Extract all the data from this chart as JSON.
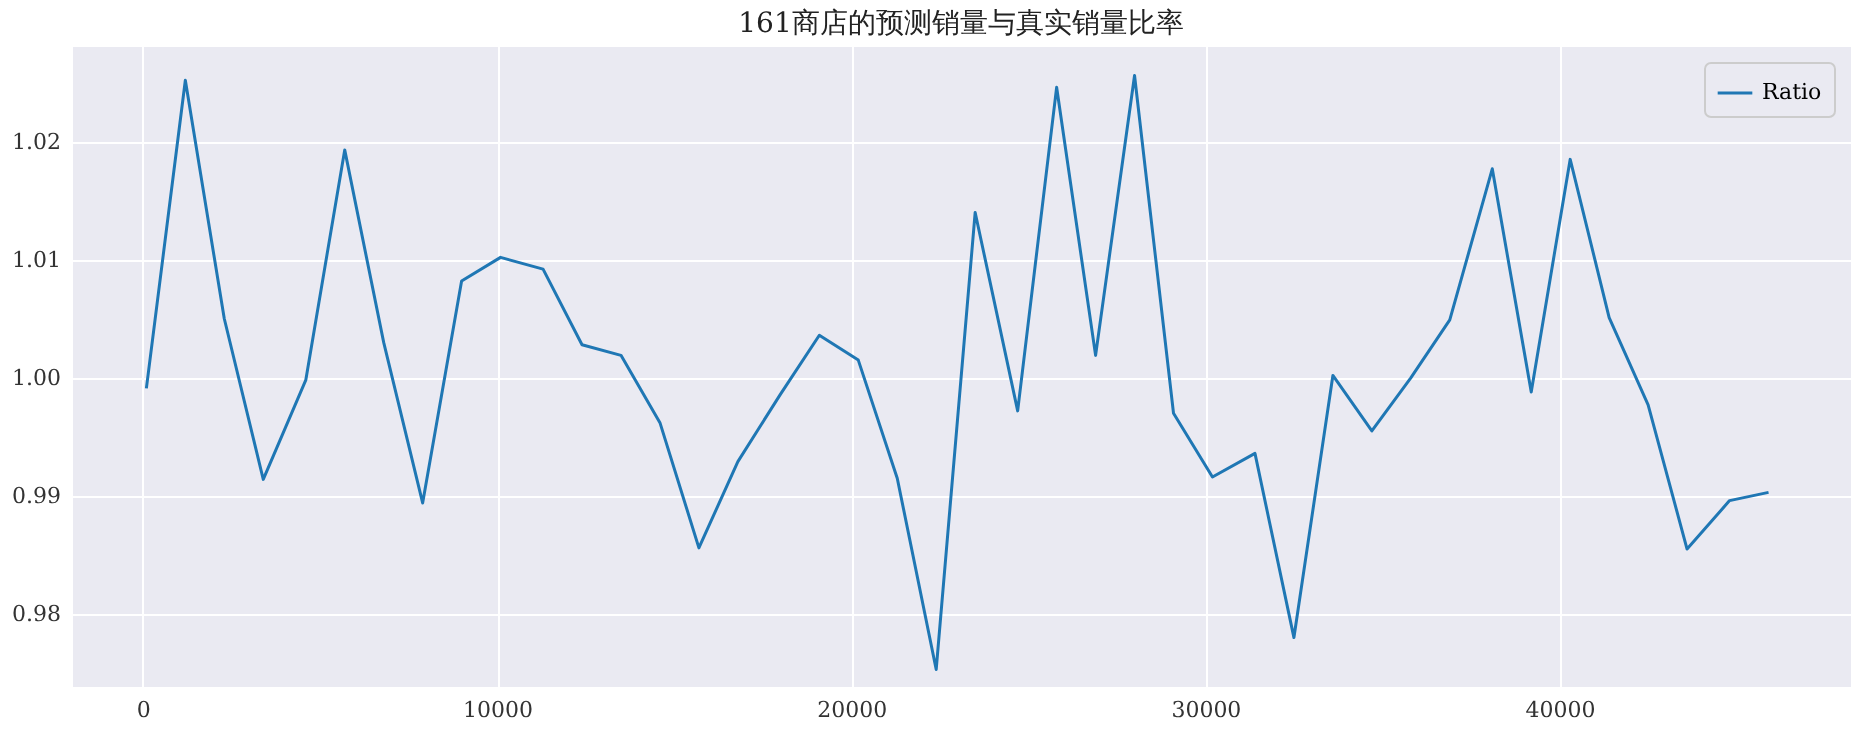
{
  "chart_data": {
    "type": "line",
    "title": "161商店的预测销量与真实销量比率",
    "x": [
      100,
      1200,
      2300,
      3400,
      4600,
      5700,
      6800,
      7900,
      9000,
      10100,
      11300,
      12400,
      13500,
      14600,
      15700,
      16800,
      18000,
      19100,
      20200,
      21300,
      22400,
      23500,
      24700,
      25800,
      26900,
      28000,
      29100,
      30200,
      31400,
      32500,
      33600,
      34700,
      35800,
      36900,
      38100,
      39200,
      40300,
      41400,
      42500,
      43600,
      44800,
      45900
    ],
    "series": [
      {
        "name": "Ratio",
        "color": "#1f77b4",
        "values": [
          0.9991,
          1.0252,
          1.005,
          0.9914,
          0.9998,
          1.0193,
          1.003,
          0.9894,
          1.0082,
          1.0102,
          1.0092,
          1.0028,
          1.0019,
          0.9962,
          0.9856,
          0.9929,
          0.9986,
          1.0036,
          1.0015,
          0.9915,
          0.9753,
          1.014,
          0.9972,
          1.0246,
          1.0019,
          1.0256,
          0.997,
          0.9916,
          0.9936,
          0.978,
          1.0002,
          0.9955,
          1.0,
          1.0049,
          1.0177,
          0.9988,
          1.0185,
          1.0051,
          0.9977,
          0.9855,
          0.9896,
          0.9903
        ]
      }
    ],
    "xlim": [
      -2000,
      48200
    ],
    "xticks": [
      0,
      10000,
      20000,
      30000,
      40000
    ],
    "ylim": [
      0.9739,
      1.0281
    ],
    "yticks": [
      0.98,
      0.99,
      {
        "value": 1.0,
        "label": "1.00"
      },
      1.01,
      1.02
    ],
    "grid": true,
    "legend": "top right",
    "marker": "none",
    "line_style": "solid"
  }
}
